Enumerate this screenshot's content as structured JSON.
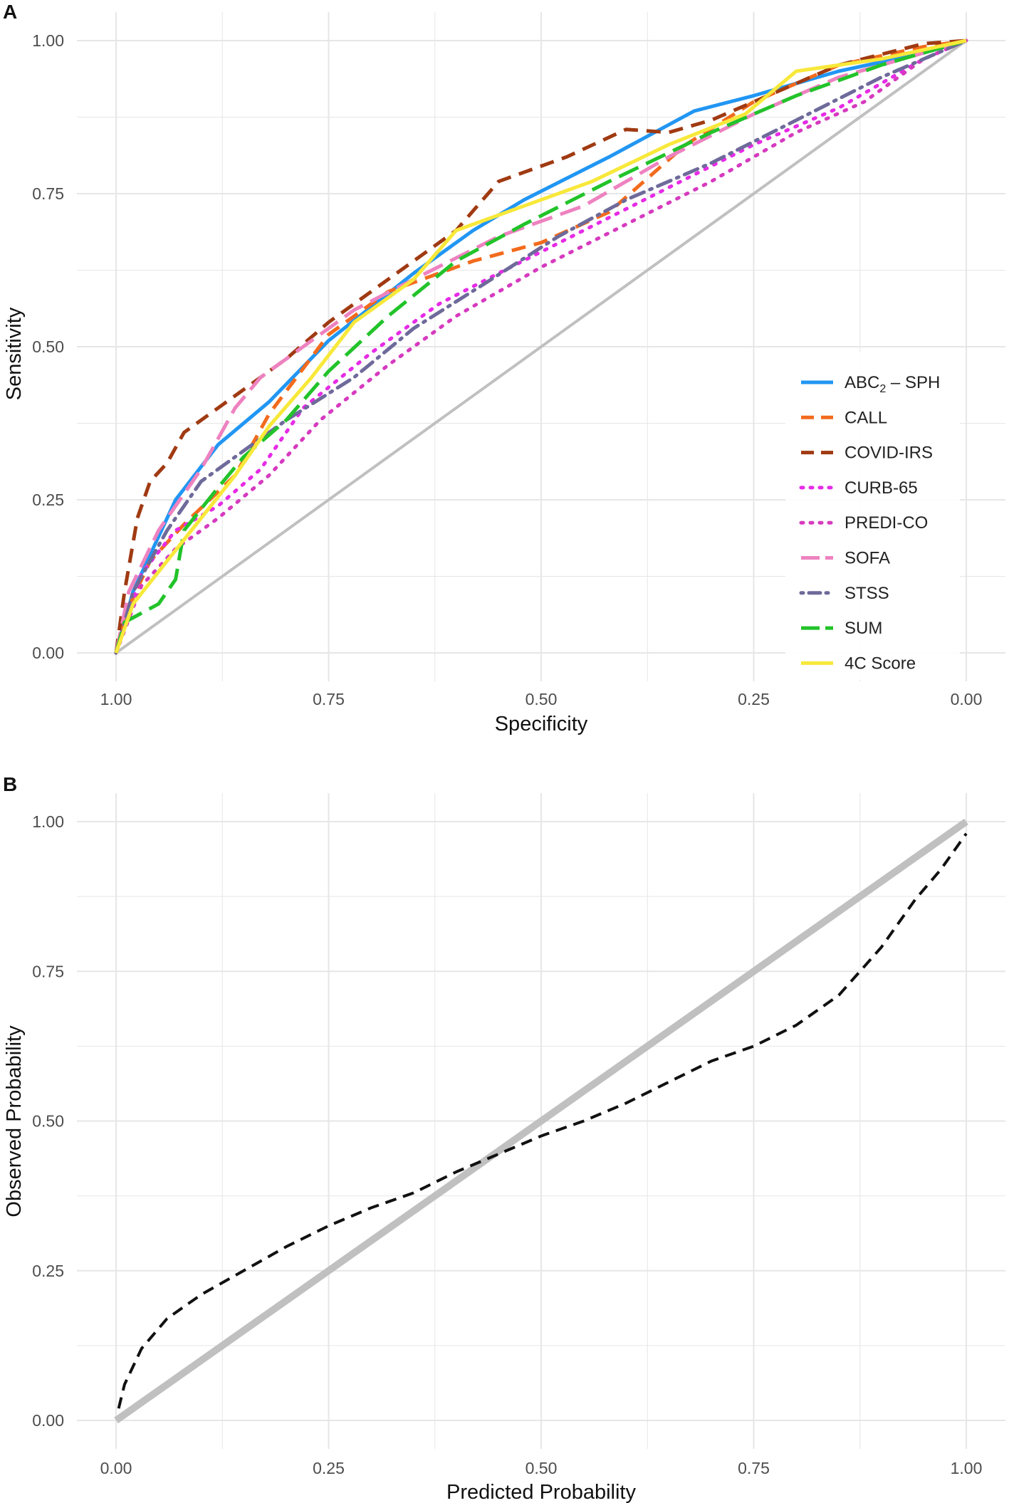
{
  "colors": {
    "ABC2-SPH": "#2196F3",
    "CALL": "#F26B1D",
    "COVID-IRS": "#A03A12",
    "CURB-65": "#E62BE6",
    "PREDI-CO": "#D63ABF",
    "SOFA": "#EE82C0",
    "STSS": "#6E6A9A",
    "SUM": "#22C32A",
    "4C Score": "#F8E83A",
    "reference": "#c0c0c0",
    "calibration": "#111111",
    "grid": "#e6e6e6"
  },
  "chart_data": [
    {
      "panel": "A",
      "type": "line",
      "title": "",
      "xlabel": "Specificity",
      "ylabel": "Sensitivity",
      "x_reversed": true,
      "xlim": [
        1.0,
        0.0
      ],
      "ylim": [
        0.0,
        1.0
      ],
      "x_ticks": [
        "1.00",
        "0.75",
        "0.50",
        "0.25",
        "0.00"
      ],
      "y_ticks": [
        "0.00",
        "0.25",
        "0.50",
        "0.75",
        "1.00"
      ],
      "grid": true,
      "legend_position": "right-inside",
      "legend": [
        {
          "label_main": "ABC",
          "label_sub": "2",
          "label_rest": " – SPH",
          "style": "solid"
        },
        {
          "label_main": "CALL",
          "label_sub": "",
          "label_rest": "",
          "style": "dashed"
        },
        {
          "label_main": "COVID-IRS",
          "label_sub": "",
          "label_rest": "",
          "style": "dashed"
        },
        {
          "label_main": "CURB-65",
          "label_sub": "",
          "label_rest": "",
          "style": "dotted"
        },
        {
          "label_main": "PREDI-CO",
          "label_sub": "",
          "label_rest": "",
          "style": "dotted"
        },
        {
          "label_main": "SOFA",
          "label_sub": "",
          "label_rest": "",
          "style": "longdash"
        },
        {
          "label_main": "STSS",
          "label_sub": "",
          "label_rest": "",
          "style": "dotdash"
        },
        {
          "label_main": "SUM",
          "label_sub": "",
          "label_rest": "",
          "style": "longdash"
        },
        {
          "label_main": "4C Score",
          "label_sub": "",
          "label_rest": "",
          "style": "solid"
        }
      ],
      "series": [
        {
          "name": "ABC2-SPH",
          "style": "solid",
          "points": [
            [
              1.0,
              0.0
            ],
            [
              0.98,
              0.1
            ],
            [
              0.93,
              0.25
            ],
            [
              0.88,
              0.34
            ],
            [
              0.82,
              0.41
            ],
            [
              0.75,
              0.51
            ],
            [
              0.65,
              0.62
            ],
            [
              0.58,
              0.69
            ],
            [
              0.52,
              0.74
            ],
            [
              0.42,
              0.81
            ],
            [
              0.32,
              0.885
            ],
            [
              0.25,
              0.91
            ],
            [
              0.15,
              0.95
            ],
            [
              0.05,
              0.98
            ],
            [
              0.0,
              1.0
            ]
          ]
        },
        {
          "name": "CALL",
          "style": "dashed",
          "points": [
            [
              1.0,
              0.0
            ],
            [
              0.99,
              0.06
            ],
            [
              0.96,
              0.15
            ],
            [
              0.92,
              0.21
            ],
            [
              0.86,
              0.29
            ],
            [
              0.82,
              0.39
            ],
            [
              0.75,
              0.52
            ],
            [
              0.68,
              0.59
            ],
            [
              0.58,
              0.64
            ],
            [
              0.5,
              0.67
            ],
            [
              0.42,
              0.72
            ],
            [
              0.33,
              0.83
            ],
            [
              0.25,
              0.9
            ],
            [
              0.15,
              0.96
            ],
            [
              0.05,
              0.99
            ],
            [
              0.0,
              1.0
            ]
          ]
        },
        {
          "name": "COVID-IRS",
          "style": "dashed",
          "points": [
            [
              1.0,
              0.0
            ],
            [
              0.99,
              0.1
            ],
            [
              0.975,
              0.22
            ],
            [
              0.96,
              0.28
            ],
            [
              0.94,
              0.31
            ],
            [
              0.92,
              0.36
            ],
            [
              0.88,
              0.4
            ],
            [
              0.8,
              0.48
            ],
            [
              0.75,
              0.54
            ],
            [
              0.65,
              0.64
            ],
            [
              0.6,
              0.69
            ],
            [
              0.55,
              0.77
            ],
            [
              0.47,
              0.81
            ],
            [
              0.4,
              0.855
            ],
            [
              0.35,
              0.85
            ],
            [
              0.3,
              0.87
            ],
            [
              0.25,
              0.9
            ],
            [
              0.15,
              0.96
            ],
            [
              0.05,
              0.995
            ],
            [
              0.0,
              1.0
            ]
          ]
        },
        {
          "name": "CURB-65",
          "style": "dotted",
          "points": [
            [
              1.0,
              0.0
            ],
            [
              0.97,
              0.13
            ],
            [
              0.93,
              0.2
            ],
            [
              0.88,
              0.24
            ],
            [
              0.83,
              0.3
            ],
            [
              0.78,
              0.4
            ],
            [
              0.7,
              0.49
            ],
            [
              0.62,
              0.57
            ],
            [
              0.55,
              0.62
            ],
            [
              0.45,
              0.69
            ],
            [
              0.35,
              0.76
            ],
            [
              0.25,
              0.83
            ],
            [
              0.15,
              0.89
            ],
            [
              0.05,
              0.97
            ],
            [
              0.0,
              1.0
            ]
          ]
        },
        {
          "name": "PREDI-CO",
          "style": "dotted",
          "points": [
            [
              1.0,
              0.0
            ],
            [
              0.97,
              0.11
            ],
            [
              0.93,
              0.17
            ],
            [
              0.88,
              0.22
            ],
            [
              0.82,
              0.29
            ],
            [
              0.76,
              0.38
            ],
            [
              0.68,
              0.47
            ],
            [
              0.6,
              0.55
            ],
            [
              0.5,
              0.63
            ],
            [
              0.4,
              0.7
            ],
            [
              0.3,
              0.77
            ],
            [
              0.2,
              0.85
            ],
            [
              0.12,
              0.9
            ],
            [
              0.05,
              0.97
            ],
            [
              0.0,
              1.0
            ]
          ]
        },
        {
          "name": "SOFA",
          "style": "longdash",
          "points": [
            [
              1.0,
              0.0
            ],
            [
              0.985,
              0.1
            ],
            [
              0.95,
              0.2
            ],
            [
              0.9,
              0.3
            ],
            [
              0.86,
              0.4
            ],
            [
              0.83,
              0.45
            ],
            [
              0.78,
              0.5
            ],
            [
              0.72,
              0.56
            ],
            [
              0.65,
              0.61
            ],
            [
              0.55,
              0.68
            ],
            [
              0.45,
              0.73
            ],
            [
              0.35,
              0.81
            ],
            [
              0.25,
              0.88
            ],
            [
              0.15,
              0.94
            ],
            [
              0.05,
              0.98
            ],
            [
              0.0,
              1.0
            ]
          ]
        },
        {
          "name": "STSS",
          "style": "dotdash",
          "points": [
            [
              1.0,
              0.0
            ],
            [
              0.98,
              0.1
            ],
            [
              0.94,
              0.2
            ],
            [
              0.9,
              0.28
            ],
            [
              0.85,
              0.33
            ],
            [
              0.8,
              0.38
            ],
            [
              0.72,
              0.45
            ],
            [
              0.65,
              0.53
            ],
            [
              0.57,
              0.6
            ],
            [
              0.48,
              0.68
            ],
            [
              0.4,
              0.74
            ],
            [
              0.3,
              0.8
            ],
            [
              0.2,
              0.87
            ],
            [
              0.1,
              0.94
            ],
            [
              0.0,
              1.0
            ]
          ]
        },
        {
          "name": "SUM",
          "style": "longdash",
          "points": [
            [
              1.0,
              0.0
            ],
            [
              0.99,
              0.05
            ],
            [
              0.95,
              0.08
            ],
            [
              0.93,
              0.12
            ],
            [
              0.92,
              0.2
            ],
            [
              0.88,
              0.27
            ],
            [
              0.85,
              0.32
            ],
            [
              0.8,
              0.38
            ],
            [
              0.75,
              0.46
            ],
            [
              0.68,
              0.55
            ],
            [
              0.6,
              0.64
            ],
            [
              0.52,
              0.7
            ],
            [
              0.42,
              0.77
            ],
            [
              0.3,
              0.85
            ],
            [
              0.2,
              0.91
            ],
            [
              0.1,
              0.96
            ],
            [
              0.0,
              1.0
            ]
          ]
        },
        {
          "name": "4C Score",
          "style": "solid",
          "points": [
            [
              1.0,
              0.0
            ],
            [
              0.98,
              0.08
            ],
            [
              0.94,
              0.15
            ],
            [
              0.9,
              0.22
            ],
            [
              0.86,
              0.29
            ],
            [
              0.82,
              0.37
            ],
            [
              0.77,
              0.45
            ],
            [
              0.72,
              0.54
            ],
            [
              0.65,
              0.61
            ],
            [
              0.6,
              0.69
            ],
            [
              0.52,
              0.73
            ],
            [
              0.44,
              0.77
            ],
            [
              0.35,
              0.83
            ],
            [
              0.26,
              0.88
            ],
            [
              0.2,
              0.95
            ],
            [
              0.1,
              0.97
            ],
            [
              0.0,
              1.0
            ]
          ]
        },
        {
          "name": "reference",
          "style": "solid",
          "points": [
            [
              1.0,
              0.0
            ],
            [
              0.0,
              1.0
            ]
          ]
        }
      ]
    },
    {
      "panel": "B",
      "type": "line",
      "title": "",
      "xlabel": "Predicted Probability",
      "ylabel": "Observed Probability",
      "xlim": [
        0.0,
        1.0
      ],
      "ylim": [
        0.0,
        1.0
      ],
      "x_ticks": [
        "0.00",
        "0.25",
        "0.50",
        "0.75",
        "1.00"
      ],
      "y_ticks": [
        "0.00",
        "0.25",
        "0.50",
        "0.75",
        "1.00"
      ],
      "grid": true,
      "series": [
        {
          "name": "ideal",
          "style": "solid",
          "points": [
            [
              0.0,
              0.0
            ],
            [
              1.0,
              1.0
            ]
          ]
        },
        {
          "name": "calibration",
          "style": "dashed",
          "points": [
            [
              0.003,
              0.02
            ],
            [
              0.01,
              0.06
            ],
            [
              0.03,
              0.12
            ],
            [
              0.06,
              0.17
            ],
            [
              0.1,
              0.21
            ],
            [
              0.15,
              0.25
            ],
            [
              0.2,
              0.29
            ],
            [
              0.25,
              0.325
            ],
            [
              0.3,
              0.355
            ],
            [
              0.35,
              0.38
            ],
            [
              0.4,
              0.415
            ],
            [
              0.45,
              0.445
            ],
            [
              0.5,
              0.475
            ],
            [
              0.55,
              0.5
            ],
            [
              0.6,
              0.53
            ],
            [
              0.65,
              0.565
            ],
            [
              0.7,
              0.6
            ],
            [
              0.75,
              0.625
            ],
            [
              0.8,
              0.66
            ],
            [
              0.85,
              0.71
            ],
            [
              0.9,
              0.79
            ],
            [
              0.94,
              0.87
            ],
            [
              0.97,
              0.92
            ],
            [
              0.99,
              0.96
            ],
            [
              1.0,
              0.98
            ]
          ]
        }
      ]
    }
  ]
}
